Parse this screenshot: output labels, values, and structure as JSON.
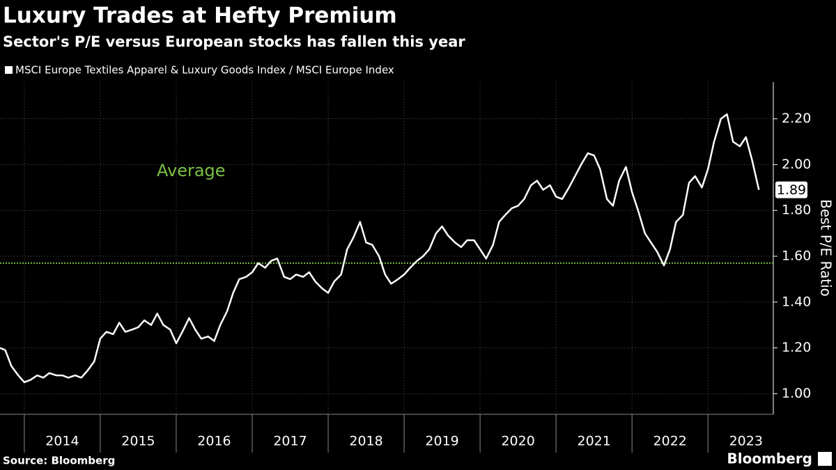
{
  "chart_data": {
    "type": "line",
    "title": "Luxury Trades at Hefty Premium",
    "subtitle": "Sector's P/E versus European stocks has fallen this year",
    "y_axis_label": "Best P/E Ratio",
    "source": "Source: Bloomberg",
    "brand": "Bloomberg",
    "average": {
      "label": "Average",
      "value": 1.57,
      "color": "#7ac143"
    },
    "x": [
      2013.68,
      2013.75,
      2013.83,
      2013.92,
      2014.0,
      2014.08,
      2014.17,
      2014.25,
      2014.33,
      2014.42,
      2014.5,
      2014.58,
      2014.67,
      2014.75,
      2014.83,
      2014.92,
      2015.0,
      2015.08,
      2015.17,
      2015.25,
      2015.33,
      2015.42,
      2015.5,
      2015.58,
      2015.67,
      2015.75,
      2015.83,
      2015.92,
      2016.0,
      2016.08,
      2016.17,
      2016.25,
      2016.33,
      2016.42,
      2016.5,
      2016.58,
      2016.67,
      2016.75,
      2016.83,
      2016.92,
      2017.0,
      2017.08,
      2017.17,
      2017.25,
      2017.33,
      2017.42,
      2017.5,
      2017.58,
      2017.67,
      2017.75,
      2017.83,
      2017.92,
      2018.0,
      2018.08,
      2018.17,
      2018.25,
      2018.33,
      2018.42,
      2018.5,
      2018.58,
      2018.67,
      2018.75,
      2018.83,
      2018.92,
      2019.0,
      2019.08,
      2019.17,
      2019.25,
      2019.33,
      2019.42,
      2019.5,
      2019.58,
      2019.67,
      2019.75,
      2019.83,
      2019.92,
      2020.0,
      2020.08,
      2020.17,
      2020.25,
      2020.33,
      2020.42,
      2020.5,
      2020.58,
      2020.67,
      2020.75,
      2020.83,
      2020.92,
      2021.0,
      2021.08,
      2021.17,
      2021.25,
      2021.33,
      2021.42,
      2021.5,
      2021.58,
      2021.67,
      2021.75,
      2021.83,
      2021.92,
      2022.0,
      2022.08,
      2022.17,
      2022.25,
      2022.33,
      2022.42,
      2022.5,
      2022.58,
      2022.67,
      2022.75,
      2022.83,
      2022.92,
      2023.0,
      2023.08,
      2023.17,
      2023.25,
      2023.33,
      2023.42,
      2023.5,
      2023.58,
      2023.67
    ],
    "series": [
      {
        "name": "MSCI Europe Textiles Apparel & Luxury Goods Index / MSCI Europe Index",
        "color": "#ffffff",
        "values": [
          1.2,
          1.19,
          1.12,
          1.08,
          1.05,
          1.06,
          1.08,
          1.07,
          1.09,
          1.08,
          1.08,
          1.07,
          1.08,
          1.07,
          1.1,
          1.14,
          1.24,
          1.27,
          1.26,
          1.31,
          1.27,
          1.28,
          1.29,
          1.32,
          1.3,
          1.35,
          1.3,
          1.28,
          1.22,
          1.27,
          1.33,
          1.28,
          1.24,
          1.25,
          1.23,
          1.3,
          1.36,
          1.44,
          1.5,
          1.51,
          1.53,
          1.57,
          1.55,
          1.58,
          1.59,
          1.51,
          1.5,
          1.52,
          1.51,
          1.53,
          1.49,
          1.46,
          1.44,
          1.49,
          1.52,
          1.63,
          1.68,
          1.75,
          1.66,
          1.65,
          1.6,
          1.52,
          1.48,
          1.5,
          1.52,
          1.55,
          1.58,
          1.6,
          1.63,
          1.7,
          1.73,
          1.69,
          1.66,
          1.64,
          1.67,
          1.67,
          1.63,
          1.59,
          1.65,
          1.75,
          1.78,
          1.81,
          1.82,
          1.85,
          1.91,
          1.93,
          1.89,
          1.91,
          1.86,
          1.85,
          1.9,
          1.95,
          2.0,
          2.05,
          2.04,
          1.98,
          1.85,
          1.82,
          1.93,
          1.99,
          1.88,
          1.8,
          1.7,
          1.66,
          1.62,
          1.56,
          1.63,
          1.75,
          1.78,
          1.92,
          1.95,
          1.9,
          1.98,
          2.1,
          2.2,
          2.22,
          2.1,
          2.08,
          2.12,
          2.02,
          1.89
        ]
      }
    ],
    "xlim": [
      2013.68,
      2023.86
    ],
    "xticks": [
      2014,
      2015,
      2016,
      2017,
      2018,
      2019,
      2020,
      2021,
      2022,
      2023
    ],
    "ylim": [
      0.91,
      2.36
    ],
    "yticks": [
      {
        "value": 1.0,
        "label": "1.00"
      },
      {
        "value": 1.2,
        "label": "1.20"
      },
      {
        "value": 1.4,
        "label": "1.40"
      },
      {
        "value": 1.6,
        "label": "1.60"
      },
      {
        "value": 1.8,
        "label": "1.80"
      },
      {
        "value": 2.0,
        "label": "2.00"
      },
      {
        "value": 2.2,
        "label": "2.20"
      }
    ],
    "grid": true
  }
}
